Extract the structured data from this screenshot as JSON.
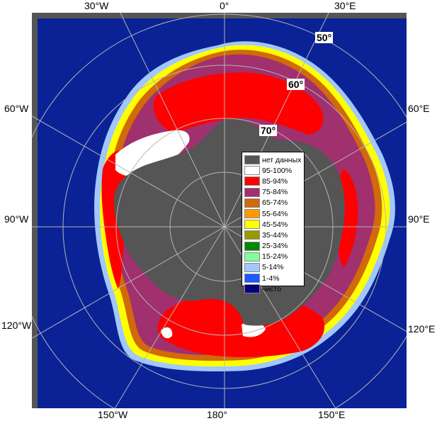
{
  "map": {
    "longitude_labels": {
      "lon_30w": "30°W",
      "lon_0": "0°",
      "lon_30e": "30°E",
      "lon_60w": "60°W",
      "lon_60e": "60°E",
      "lon_90w": "90°W",
      "lon_90e": "90°E",
      "lon_120w": "120°W",
      "lon_120e": "120°E",
      "lon_150w": "150°W",
      "lon_180": "180°",
      "lon_150e": "150°E"
    },
    "latitude_labels": {
      "lat_50": "50°",
      "lat_60": "60°",
      "lat_70": "70°"
    }
  },
  "legend": {
    "items": [
      {
        "label": "нет данных",
        "color": "#555555"
      },
      {
        "label": "95-100%",
        "color": "#ffffff"
      },
      {
        "label": "85-94%",
        "color": "#ff0000"
      },
      {
        "label": "75-84%",
        "color": "#a0306e"
      },
      {
        "label": "65-74%",
        "color": "#d2690a"
      },
      {
        "label": "55-64%",
        "color": "#ff9900"
      },
      {
        "label": "45-54%",
        "color": "#ffff00"
      },
      {
        "label": "35-44%",
        "color": "#999900"
      },
      {
        "label": "25-34%",
        "color": "#008800"
      },
      {
        "label": "15-24%",
        "color": "#80ff9a"
      },
      {
        "label": "5-14%",
        "color": "#a0c8ff"
      },
      {
        "label": "1-4%",
        "color": "#1a5aff"
      },
      {
        "label": "чисто",
        "color": "#000080"
      }
    ]
  },
  "colors": {
    "ocean": "#0a2296",
    "land": "#555555",
    "frame": "#555555",
    "grid": "#b4b4b4"
  }
}
